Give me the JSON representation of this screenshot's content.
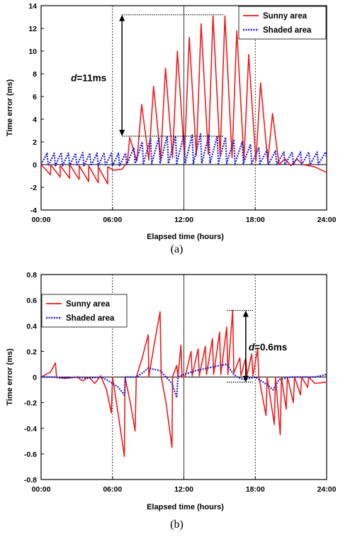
{
  "chart_data": [
    {
      "type": "line",
      "panel_label": "(a)",
      "xlabel": "Elapsed time (hours)",
      "ylabel": "Time error (ms)",
      "x_unit": "hours",
      "xlim": [
        0,
        24
      ],
      "ylim": [
        -4,
        14
      ],
      "x_ticks": [
        0,
        6,
        12,
        18,
        24
      ],
      "x_tick_labels": [
        "00:00",
        "06:00",
        "12:00",
        "18:00",
        "24:00"
      ],
      "y_ticks": [
        -4,
        -2,
        0,
        2,
        4,
        6,
        8,
        10,
        12,
        14
      ],
      "y_tick_labels": [
        "-4",
        "-2",
        "0",
        "2",
        "4",
        "6",
        "8",
        "10",
        "12",
        "14"
      ],
      "grid": {
        "vertical_solid": [
          12
        ],
        "vertical_dotted": [
          6,
          18
        ]
      },
      "legend": {
        "position": "top-right",
        "entries": [
          "Sunny area",
          "Shaded area"
        ]
      },
      "annotation": {
        "prefix": "d",
        "text": "=11ms",
        "x": 6.8,
        "y_top": 13.2,
        "y_bottom": 2.5,
        "line_x_range": [
          6.8,
          15.3
        ]
      },
      "series": [
        {
          "name": "Sunny area",
          "color": "#ee1c1c",
          "style": "solid",
          "points": [
            [
              0,
              0
            ],
            [
              0.8,
              -0.9
            ],
            [
              0.8,
              0
            ],
            [
              1.6,
              -1.1
            ],
            [
              1.6,
              -0.1
            ],
            [
              2.4,
              -1.2
            ],
            [
              2.4,
              0
            ],
            [
              3.2,
              -1.3
            ],
            [
              3.2,
              -0.1
            ],
            [
              4,
              -1.5
            ],
            [
              4,
              -0.1
            ],
            [
              4.8,
              -1.6
            ],
            [
              4.8,
              -0.2
            ],
            [
              5.6,
              -1.7
            ],
            [
              5.6,
              -0.2
            ],
            [
              6.1,
              -0.5
            ],
            [
              6.8,
              -0.4
            ],
            [
              7.25,
              0.2
            ],
            [
              7.45,
              2.4
            ],
            [
              8.05,
              0.3
            ],
            [
              8.45,
              5.3
            ],
            [
              9.05,
              0.4
            ],
            [
              9.45,
              6.9
            ],
            [
              10.05,
              0.5
            ],
            [
              10.45,
              8.5
            ],
            [
              11.05,
              0.6
            ],
            [
              11.45,
              10
            ],
            [
              12.05,
              0.7
            ],
            [
              12.45,
              11.2
            ],
            [
              13.05,
              0.8
            ],
            [
              13.45,
              12.4
            ],
            [
              14.05,
              0.9
            ],
            [
              14.45,
              13.1
            ],
            [
              15.05,
              0.8
            ],
            [
              15.45,
              13.1
            ],
            [
              16.05,
              0.6
            ],
            [
              16.45,
              11.8
            ],
            [
              17.05,
              0.4
            ],
            [
              17.45,
              9.7
            ],
            [
              18.05,
              0.3
            ],
            [
              18.45,
              7.2
            ],
            [
              19.05,
              0.2
            ],
            [
              19.45,
              4.5
            ],
            [
              20,
              0
            ],
            [
              20.5,
              0.5
            ],
            [
              21,
              -0.1
            ],
            [
              21.5,
              0.5
            ],
            [
              22,
              0
            ],
            [
              23,
              -0.2
            ],
            [
              24,
              -0.7
            ]
          ]
        },
        {
          "name": "Shaded area",
          "color": "#2222cc",
          "style": "dotted",
          "points": [
            [
              0,
              0
            ],
            [
              0.5,
              1
            ],
            [
              0.6,
              -0.1
            ],
            [
              1.1,
              1
            ],
            [
              1.2,
              -0.1
            ],
            [
              1.7,
              1.05
            ],
            [
              1.8,
              -0.1
            ],
            [
              2.3,
              1
            ],
            [
              2.4,
              -0.1
            ],
            [
              2.9,
              1
            ],
            [
              3,
              -0.1
            ],
            [
              3.5,
              1.05
            ],
            [
              3.6,
              -0.1
            ],
            [
              4.1,
              1
            ],
            [
              4.2,
              -0.1
            ],
            [
              4.7,
              1
            ],
            [
              4.8,
              -0.1
            ],
            [
              5.3,
              1.05
            ],
            [
              5.4,
              -0.1
            ],
            [
              5.9,
              1
            ],
            [
              6,
              -0.1
            ],
            [
              6.5,
              1
            ],
            [
              6.6,
              -0.1
            ],
            [
              7.1,
              1
            ],
            [
              7.2,
              0
            ],
            [
              7.8,
              1.5
            ],
            [
              7.9,
              0.1
            ],
            [
              8.5,
              2
            ],
            [
              8.6,
              0.1
            ],
            [
              9.2,
              2.3
            ],
            [
              9.3,
              0.1
            ],
            [
              9.9,
              2.4
            ],
            [
              10,
              0.1
            ],
            [
              10.6,
              2.5
            ],
            [
              10.7,
              0.1
            ],
            [
              11.3,
              2.5
            ],
            [
              11.4,
              0.1
            ],
            [
              12,
              2.6
            ],
            [
              12.1,
              0.1
            ],
            [
              12.7,
              2.6
            ],
            [
              12.8,
              0.1
            ],
            [
              13.4,
              2.7
            ],
            [
              13.5,
              0.1
            ],
            [
              14.1,
              2.6
            ],
            [
              14.2,
              0.1
            ],
            [
              14.8,
              2.5
            ],
            [
              14.9,
              0.1
            ],
            [
              15.5,
              2.4
            ],
            [
              15.6,
              0.1
            ],
            [
              16.2,
              2.2
            ],
            [
              16.3,
              0.1
            ],
            [
              16.9,
              2
            ],
            [
              17,
              0.1
            ],
            [
              17.6,
              1.8
            ],
            [
              17.7,
              0.1
            ],
            [
              18.3,
              1.5
            ],
            [
              18.4,
              0.1
            ],
            [
              19,
              1.3
            ],
            [
              19.1,
              0
            ],
            [
              19.7,
              1.2
            ],
            [
              19.8,
              0
            ],
            [
              20.4,
              1.1
            ],
            [
              20.5,
              0
            ],
            [
              21.1,
              1.1
            ],
            [
              21.2,
              0
            ],
            [
              21.8,
              1.1
            ],
            [
              21.9,
              0
            ],
            [
              22.5,
              1.1
            ],
            [
              22.6,
              0
            ],
            [
              23.2,
              1.1
            ],
            [
              23.3,
              0
            ],
            [
              23.9,
              1.1
            ],
            [
              24,
              0.6
            ]
          ]
        }
      ]
    },
    {
      "type": "line",
      "panel_label": "(b)",
      "xlabel": "Elapsed time (hours)",
      "ylabel": "Time error (ms)",
      "x_unit": "hours",
      "xlim": [
        0,
        24
      ],
      "ylim": [
        -0.8,
        0.8
      ],
      "x_ticks": [
        0,
        6,
        12,
        18,
        24
      ],
      "x_tick_labels": [
        "00:00",
        "06:00",
        "12:00",
        "18:00",
        "24:00"
      ],
      "y_ticks": [
        -0.8,
        -0.6,
        -0.4,
        -0.2,
        0,
        0.2,
        0.4,
        0.6,
        0.8
      ],
      "y_tick_labels": [
        "-0.8",
        "-0.6",
        "-0.4",
        "-0.2",
        "0",
        "0.2",
        "0.4",
        "0.6",
        "0.8"
      ],
      "grid": {
        "vertical_solid": [
          12
        ],
        "vertical_dotted": [
          6,
          18
        ]
      },
      "legend": {
        "position": "top-left",
        "entries": [
          "Sunny area",
          "Shaded area"
        ]
      },
      "annotation": {
        "prefix": "d",
        "text": "=0.6ms",
        "x": 17.2,
        "y_top": 0.52,
        "y_bottom": -0.04,
        "line_x_range": [
          15.6,
          17.8
        ]
      },
      "series": [
        {
          "name": "Sunny area",
          "color": "#ee1c1c",
          "style": "solid",
          "points": [
            [
              0,
              0
            ],
            [
              0.8,
              0.04
            ],
            [
              1.2,
              0.11
            ],
            [
              1.3,
              0
            ],
            [
              2,
              -0.01
            ],
            [
              3,
              0
            ],
            [
              3.5,
              -0.03
            ],
            [
              4,
              0
            ],
            [
              4.5,
              -0.05
            ],
            [
              5,
              0.01
            ],
            [
              5.5,
              -0.1
            ],
            [
              5.9,
              -0.28
            ],
            [
              6,
              0
            ],
            [
              6.5,
              -0.3
            ],
            [
              7,
              -0.62
            ],
            [
              7.05,
              0
            ],
            [
              7.5,
              -0.2
            ],
            [
              7.9,
              -0.42
            ],
            [
              8,
              0
            ],
            [
              8.5,
              0.15
            ],
            [
              9,
              0.33
            ],
            [
              9.05,
              0
            ],
            [
              9.5,
              0.25
            ],
            [
              10,
              0.51
            ],
            [
              10.1,
              0
            ],
            [
              10.5,
              -0.2
            ],
            [
              11,
              -0.55
            ],
            [
              11.05,
              0
            ],
            [
              11.4,
              0.09
            ],
            [
              11.5,
              0
            ],
            [
              11.75,
              0.25
            ],
            [
              11.85,
              0
            ],
            [
              12.1,
              0
            ],
            [
              12.6,
              0.2
            ],
            [
              12.7,
              0.01
            ],
            [
              13.2,
              0.22
            ],
            [
              13.3,
              0.01
            ],
            [
              13.8,
              0.24
            ],
            [
              13.9,
              0.02
            ],
            [
              14.4,
              0.3
            ],
            [
              14.5,
              0.02
            ],
            [
              15,
              0.35
            ],
            [
              15.1,
              0.02
            ],
            [
              15.6,
              0.39
            ],
            [
              15.7,
              0.02
            ],
            [
              16.1,
              0.52
            ],
            [
              16.2,
              0.03
            ],
            [
              16.7,
              0.15
            ],
            [
              16.8,
              0.01
            ],
            [
              17.2,
              0.15
            ],
            [
              17.3,
              0.01
            ],
            [
              17.7,
              0.18
            ],
            [
              17.8,
              0.01
            ],
            [
              18.2,
              0.22
            ],
            [
              18.3,
              0
            ],
            [
              18.9,
              -0.3
            ],
            [
              19,
              0
            ],
            [
              19.6,
              -0.37
            ],
            [
              19.7,
              0
            ],
            [
              20.1,
              -0.45
            ],
            [
              20.2,
              0
            ],
            [
              20.6,
              -0.25
            ],
            [
              20.7,
              0
            ],
            [
              21.2,
              -0.2
            ],
            [
              21.3,
              0
            ],
            [
              21.8,
              -0.14
            ],
            [
              21.9,
              0
            ],
            [
              22.4,
              -0.08
            ],
            [
              22.5,
              0
            ],
            [
              23,
              -0.05
            ],
            [
              24,
              -0.04
            ]
          ]
        },
        {
          "name": "Shaded area",
          "color": "#2222cc",
          "style": "dotted",
          "points": [
            [
              0,
              0
            ],
            [
              1,
              0
            ],
            [
              2,
              -0.01
            ],
            [
              3,
              0
            ],
            [
              4,
              -0.01
            ],
            [
              5,
              0
            ],
            [
              5.5,
              -0.02
            ],
            [
              6,
              -0.05
            ],
            [
              6.5,
              -0.08
            ],
            [
              7,
              -0.14
            ],
            [
              7.1,
              0
            ],
            [
              8,
              0
            ],
            [
              8.5,
              0.03
            ],
            [
              9,
              0.07
            ],
            [
              9.5,
              0.06
            ],
            [
              10,
              0.05
            ],
            [
              10.5,
              0
            ],
            [
              11,
              -0.05
            ],
            [
              11.4,
              -0.16
            ],
            [
              11.5,
              0
            ],
            [
              12,
              0.02
            ],
            [
              13,
              0.05
            ],
            [
              14,
              0.07
            ],
            [
              15,
              0.09
            ],
            [
              15.6,
              0.1
            ],
            [
              16.2,
              0.02
            ],
            [
              16.5,
              0
            ],
            [
              17,
              -0.02
            ],
            [
              18,
              0
            ],
            [
              19,
              -0.06
            ],
            [
              19.5,
              -0.1
            ],
            [
              20,
              -0.02
            ],
            [
              21,
              0
            ],
            [
              22,
              0
            ],
            [
              23,
              0
            ],
            [
              24,
              0.02
            ]
          ]
        }
      ]
    }
  ]
}
